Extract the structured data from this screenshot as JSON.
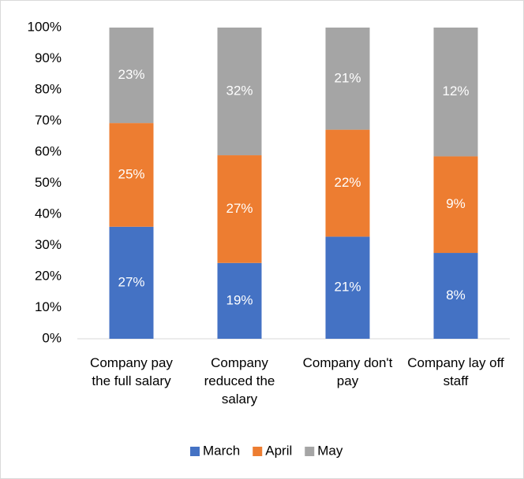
{
  "chart_data": {
    "type": "bar",
    "stacked": "percent",
    "categories": [
      "Company pay the full salary",
      "Company reduced the salary",
      "Company don't pay",
      "Company lay off staff"
    ],
    "series": [
      {
        "name": "March",
        "color": "#4472c4",
        "values": [
          27,
          19,
          21,
          8
        ],
        "value_labels": [
          "27%",
          "19%",
          "21%",
          "8%"
        ]
      },
      {
        "name": "April",
        "color": "#ed7d31",
        "values": [
          25,
          27,
          22,
          9
        ],
        "value_labels": [
          "25%",
          "27%",
          "22%",
          "9%"
        ]
      },
      {
        "name": "May",
        "color": "#a5a5a5",
        "values": [
          23,
          32,
          21,
          12
        ],
        "value_labels": [
          "23%",
          "32%",
          "21%",
          "12%"
        ]
      }
    ],
    "ylim": [
      0,
      100
    ],
    "yticks": [
      {
        "value": 0,
        "label": "0%"
      },
      {
        "value": 10,
        "label": "10%"
      },
      {
        "value": 20,
        "label": "20%"
      },
      {
        "value": 30,
        "label": "30%"
      },
      {
        "value": 40,
        "label": "40%"
      },
      {
        "value": 50,
        "label": "50%"
      },
      {
        "value": 60,
        "label": "60%"
      },
      {
        "value": 70,
        "label": "70%"
      },
      {
        "value": 80,
        "label": "80%"
      },
      {
        "value": 90,
        "label": "90%"
      },
      {
        "value": 100,
        "label": "100%"
      }
    ],
    "grid": false,
    "legend": "bottom"
  }
}
